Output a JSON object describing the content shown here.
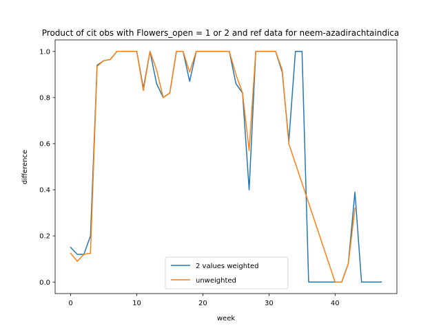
{
  "chart_data": {
    "type": "line",
    "title": "Product of cit obs with Flowers_open = 1 or 2 and ref data for neem-azadirachtaindica",
    "xlabel": "week",
    "ylabel": "difference",
    "xlim": [
      -2.35,
      49.35
    ],
    "ylim": [
      -0.05,
      1.05
    ],
    "xticks": [
      0,
      10,
      20,
      30,
      40
    ],
    "yticks": [
      0.0,
      0.2,
      0.4,
      0.6,
      0.8,
      1.0
    ],
    "ytick_labels": [
      "0.0",
      "0.2",
      "0.4",
      "0.6",
      "0.8",
      "1.0"
    ],
    "legend_position": "lower center",
    "series": [
      {
        "name": "2 values weighted",
        "color": "#1f77b4",
        "x": [
          0,
          1,
          2,
          3,
          4,
          5,
          6,
          7,
          8,
          9,
          10,
          11,
          12,
          13,
          14,
          15,
          16,
          17,
          18,
          19,
          20,
          21,
          22,
          23,
          24,
          25,
          26,
          27,
          28,
          29,
          30,
          31,
          32,
          33,
          34,
          35,
          36,
          37,
          38,
          39,
          40,
          41,
          42,
          43,
          44,
          45,
          46,
          47
        ],
        "y": [
          0.15,
          0.12,
          0.12,
          0.2,
          0.94,
          0.96,
          0.965,
          1.0,
          1.0,
          1.0,
          1.0,
          0.84,
          1.0,
          0.86,
          0.8,
          0.82,
          1.0,
          1.0,
          0.87,
          1.0,
          1.0,
          1.0,
          1.0,
          1.0,
          1.0,
          0.86,
          0.82,
          0.4,
          1.0,
          1.0,
          1.0,
          1.0,
          0.91,
          0.61,
          1.0,
          1.0,
          0.0,
          0.0,
          0.0,
          0.0,
          0.0,
          0.0,
          0.08,
          0.39,
          0.0,
          0.0,
          0.0,
          0.0
        ]
      },
      {
        "name": "unweighted",
        "color": "#ff7f0e",
        "x": [
          0,
          1,
          2,
          3,
          4,
          5,
          6,
          7,
          8,
          9,
          10,
          11,
          12,
          13,
          14,
          15,
          16,
          17,
          18,
          19,
          20,
          21,
          22,
          23,
          24,
          25,
          26,
          27,
          28,
          29,
          30,
          31,
          32,
          33,
          40,
          41,
          42,
          43
        ],
        "y": [
          0.125,
          0.09,
          0.12,
          0.125,
          0.935,
          0.96,
          0.965,
          1.0,
          1.0,
          1.0,
          1.0,
          0.83,
          1.0,
          0.92,
          0.8,
          0.82,
          1.0,
          1.0,
          0.91,
          1.0,
          1.0,
          1.0,
          1.0,
          1.0,
          1.0,
          0.9,
          0.82,
          0.57,
          1.0,
          1.0,
          1.0,
          1.0,
          0.92,
          0.6,
          0.0,
          0.0,
          0.08,
          0.32
        ]
      }
    ]
  }
}
